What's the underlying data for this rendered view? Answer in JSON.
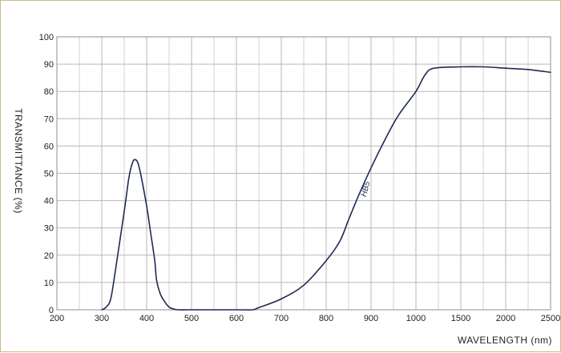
{
  "chart_data": {
    "type": "line",
    "title": "",
    "xlabel": "WAVELENGTH (nm)",
    "ylabel": "TRANSMITTANCE  (%)",
    "x_tick_labels": [
      "200",
      "300",
      "400",
      "500",
      "600",
      "700",
      "800",
      "900",
      "1000",
      "1500",
      "2000",
      "2500"
    ],
    "y_tick_labels": [
      "0",
      "10",
      "20",
      "30",
      "40",
      "50",
      "60",
      "70",
      "80",
      "90",
      "100"
    ],
    "ylim": [
      0,
      100
    ],
    "grid": true,
    "x_scale": "piecewise: 100 nm per grid step from 200 to 1000, then 500 nm per grid step to 2500",
    "series": [
      {
        "name": "HB5",
        "color": "#1f2a55",
        "points": [
          [
            300,
            0
          ],
          [
            310,
            1
          ],
          [
            320,
            4
          ],
          [
            330,
            14
          ],
          [
            340,
            25
          ],
          [
            350,
            36
          ],
          [
            355,
            42
          ],
          [
            360,
            48
          ],
          [
            365,
            52
          ],
          [
            370,
            54.5
          ],
          [
            375,
            55
          ],
          [
            380,
            54
          ],
          [
            385,
            51
          ],
          [
            390,
            47
          ],
          [
            400,
            38
          ],
          [
            410,
            27
          ],
          [
            418,
            18
          ],
          [
            422,
            11
          ],
          [
            430,
            6
          ],
          [
            440,
            3
          ],
          [
            450,
            1
          ],
          [
            460,
            0.3
          ],
          [
            470,
            0
          ],
          [
            500,
            0
          ],
          [
            600,
            0
          ],
          [
            635,
            0
          ],
          [
            650,
            0.8
          ],
          [
            700,
            4
          ],
          [
            750,
            9
          ],
          [
            800,
            18
          ],
          [
            830,
            25
          ],
          [
            850,
            33
          ],
          [
            870,
            41
          ],
          [
            900,
            52
          ],
          [
            930,
            62
          ],
          [
            960,
            71
          ],
          [
            1000,
            80
          ],
          [
            1100,
            86
          ],
          [
            1200,
            88.5
          ],
          [
            1500,
            89
          ],
          [
            1750,
            89
          ],
          [
            2000,
            88.5
          ],
          [
            2250,
            88
          ],
          [
            2500,
            87
          ]
        ]
      }
    ]
  }
}
